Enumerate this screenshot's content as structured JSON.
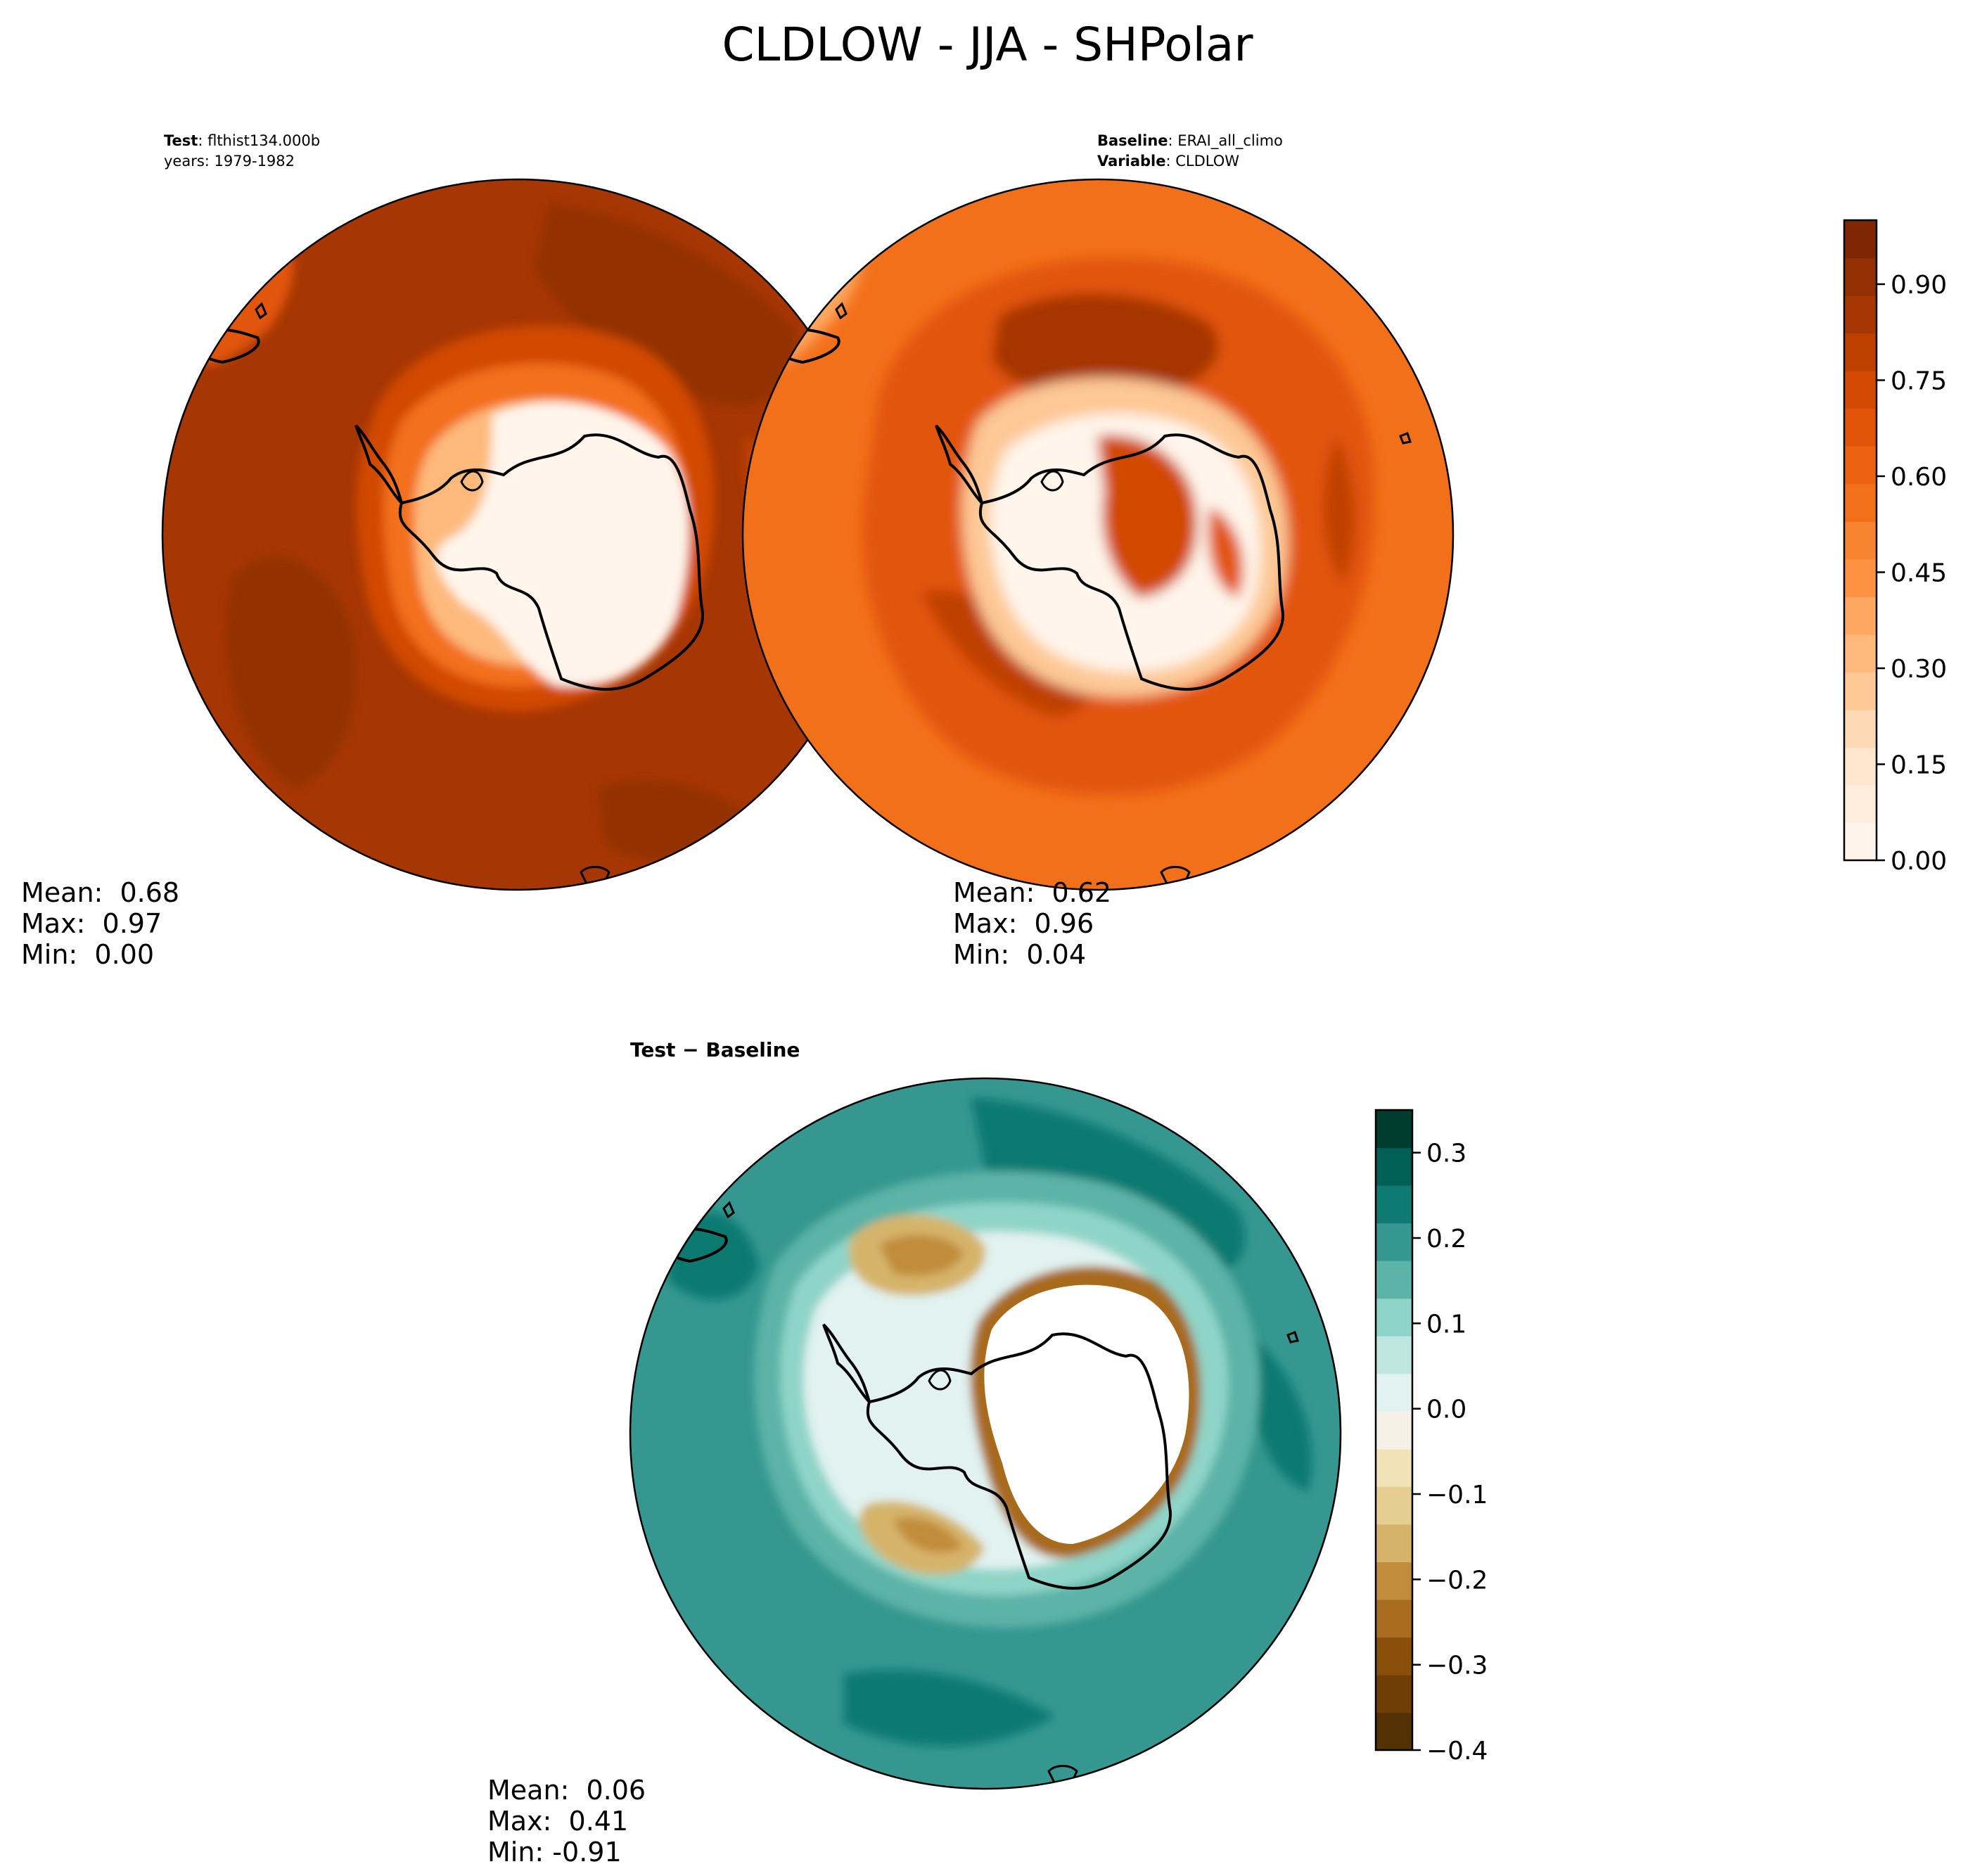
{
  "title": "CLDLOW - JJA - SHPolar",
  "colors": {
    "oranges": [
      "#fff5eb",
      "#feeddc",
      "#fee6ce",
      "#fdd9b5",
      "#fdc895",
      "#fdb97c",
      "#fda762",
      "#fd9243",
      "#f88431",
      "#f3701b",
      "#ec6210",
      "#e2540a",
      "#d24a04",
      "#bf4102",
      "#a63603",
      "#933003",
      "#7f2704"
    ],
    "brbg": [
      "#543005",
      "#6f3e07",
      "#8a500b",
      "#a86b1f",
      "#c18c3b",
      "#d5b46a",
      "#e6cd91",
      "#f2e2b8",
      "#f5f1e6",
      "#e1f2f0",
      "#bfe6df",
      "#8fd4c8",
      "#5cb3a7",
      "#35978f",
      "#0f7a72",
      "#005f56",
      "#003c30"
    ],
    "coast": "#000000"
  },
  "chart_data": [
    {
      "type": "heatmap",
      "panel": "test",
      "label_bold": "Test",
      "label_value": "flthist134.000b",
      "label_line2": "years: 1979-1982",
      "stats": {
        "mean": "Mean:  0.68",
        "max": "Max:  0.97",
        "min": "Min:  0.00"
      },
      "colormap": "oranges"
    },
    {
      "type": "heatmap",
      "panel": "baseline",
      "label_bold": "Baseline",
      "label_value": "ERAI_all_climo",
      "label2_bold": "Variable",
      "label2_value": "CLDLOW",
      "stats": {
        "mean": "Mean:  0.62",
        "max": "Max:  0.96",
        "min": "Min:  0.04"
      },
      "colormap": "oranges",
      "colorbar": {
        "min": 0.0,
        "max": 1.0,
        "levels": 17,
        "ticks": [
          "0.00",
          "0.15",
          "0.30",
          "0.45",
          "0.60",
          "0.75",
          "0.90"
        ],
        "tick_values": [
          0.0,
          0.15,
          0.3,
          0.45,
          0.6,
          0.75,
          0.9
        ]
      }
    },
    {
      "type": "heatmap",
      "panel": "difference",
      "label_bold": "Test − Baseline",
      "stats": {
        "mean": "Mean:  0.06",
        "max": "Max:  0.41",
        "min": "Min: -0.91"
      },
      "colormap": "brbg",
      "colorbar": {
        "min": -0.4,
        "max": 0.35,
        "levels": 15,
        "ticks": [
          "0.3",
          "0.2",
          "0.1",
          "0.0",
          "−0.1",
          "−0.2",
          "−0.3",
          "−0.4"
        ],
        "tick_values": [
          0.3,
          0.2,
          0.1,
          0.0,
          -0.1,
          -0.2,
          -0.3,
          -0.4
        ]
      }
    }
  ]
}
